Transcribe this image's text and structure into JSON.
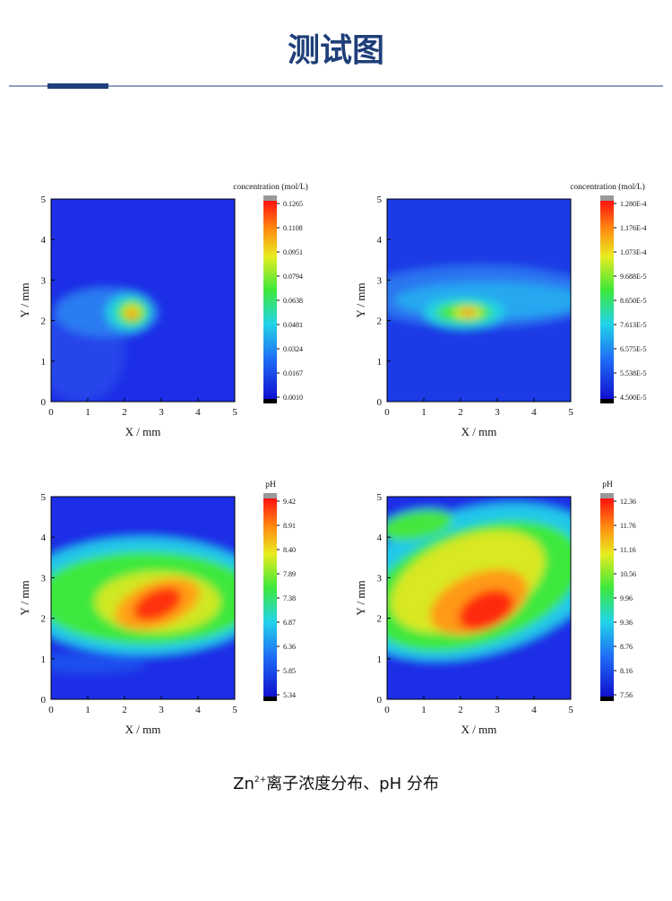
{
  "header": {
    "title": "测试图"
  },
  "plots": [
    {
      "x_label": "X / mm",
      "y_label": "Y / mm",
      "xticks": [
        0,
        1,
        2,
        3,
        4,
        5
      ],
      "yticks": [
        0,
        1,
        2,
        3,
        4,
        5
      ],
      "colorbar_title": "concentration (mol/L)",
      "colorbar_ticks": [
        "0.1265",
        "0.1108",
        "0.0951",
        "0.0794",
        "0.0638",
        "0.0481",
        "0.0324",
        "0.0167",
        "0.0010"
      ]
    },
    {
      "x_label": "X / mm",
      "y_label": "Y / mm",
      "xticks": [
        0,
        1,
        2,
        3,
        4,
        5
      ],
      "yticks": [
        0,
        1,
        2,
        3,
        4,
        5
      ],
      "colorbar_title": "concentration (mol/L)",
      "colorbar_ticks": [
        "1.280E-4",
        "1.176E-4",
        "1.073E-4",
        "9.688E-5",
        "8.650E-5",
        "7.613E-5",
        "6.575E-5",
        "5.538E-5",
        "4.500E-5"
      ]
    },
    {
      "x_label": "X / mm",
      "y_label": "Y / mm",
      "xticks": [
        0,
        1,
        2,
        3,
        4,
        5
      ],
      "yticks": [
        0,
        1,
        2,
        3,
        4,
        5
      ],
      "colorbar_title": "pH",
      "colorbar_ticks": [
        "9.42",
        "8.91",
        "8.40",
        "7.89",
        "7.38",
        "6.87",
        "6.36",
        "5.85",
        "5.34"
      ]
    },
    {
      "x_label": "X / mm",
      "y_label": "Y / mm",
      "xticks": [
        0,
        1,
        2,
        3,
        4,
        5
      ],
      "yticks": [
        0,
        1,
        2,
        3,
        4,
        5
      ],
      "colorbar_title": "pH",
      "colorbar_ticks": [
        "12.36",
        "11.76",
        "11.16",
        "10.56",
        "9.96",
        "9.36",
        "8.76",
        "8.16",
        "7.56"
      ]
    }
  ],
  "caption": {
    "base": "Zn",
    "superscript": "2+",
    "text": "离子浓度分布、pH 分布"
  }
}
